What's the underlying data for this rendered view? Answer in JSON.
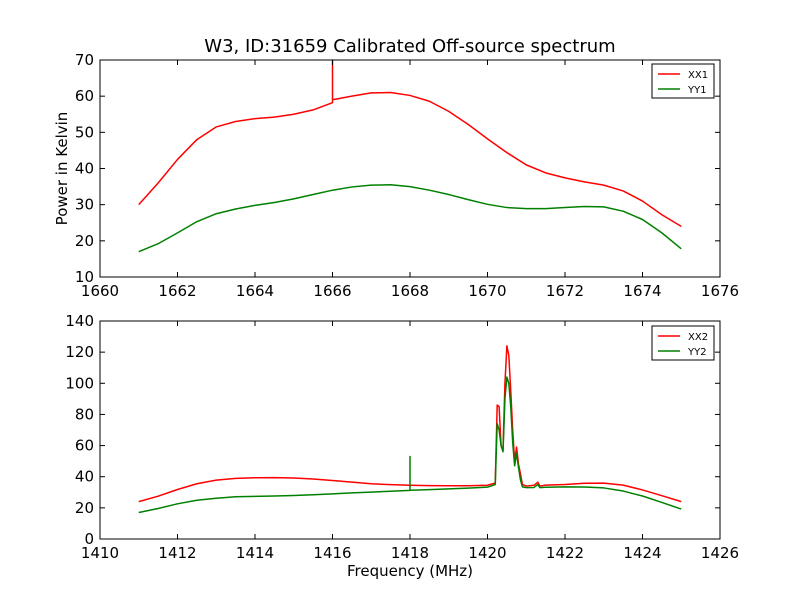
{
  "figure": {
    "title": "W3, ID:31659 Calibrated Off-source spectrum"
  },
  "chart_data": [
    {
      "type": "line",
      "title": "W3, ID:31659 Calibrated Off-source spectrum",
      "xlabel": "",
      "ylabel": "Power in Kelvin",
      "xlim": [
        1660,
        1676
      ],
      "ylim": [
        10,
        70
      ],
      "x_ticks": [
        "1660",
        "1662",
        "1664",
        "1666",
        "1668",
        "1670",
        "1672",
        "1674",
        "1676"
      ],
      "y_ticks": [
        "10",
        "20",
        "30",
        "40",
        "50",
        "60",
        "70"
      ],
      "legend": "top-right",
      "grid": false,
      "series": [
        {
          "name": "XX1",
          "color": "#ff0000",
          "points": [
            [
              1661.0,
              30.0
            ],
            [
              1661.5,
              36.0
            ],
            [
              1662.0,
              42.5
            ],
            [
              1662.5,
              48.0
            ],
            [
              1663.0,
              51.5
            ],
            [
              1663.5,
              53.0
            ],
            [
              1664.0,
              53.8
            ],
            [
              1664.5,
              54.2
            ],
            [
              1665.0,
              55.0
            ],
            [
              1665.5,
              56.2
            ],
            [
              1666.0,
              58.2
            ],
            [
              1666.0,
              70.0
            ],
            [
              1666.0,
              59.0
            ],
            [
              1666.5,
              60.0
            ],
            [
              1667.0,
              60.9
            ],
            [
              1667.5,
              61.0
            ],
            [
              1668.0,
              60.2
            ],
            [
              1668.5,
              58.6
            ],
            [
              1669.0,
              55.8
            ],
            [
              1669.5,
              52.2
            ],
            [
              1670.0,
              48.2
            ],
            [
              1670.5,
              44.4
            ],
            [
              1671.0,
              41.0
            ],
            [
              1671.5,
              38.8
            ],
            [
              1672.0,
              37.4
            ],
            [
              1672.5,
              36.3
            ],
            [
              1673.0,
              35.4
            ],
            [
              1673.5,
              33.8
            ],
            [
              1674.0,
              31.0
            ],
            [
              1674.5,
              27.2
            ],
            [
              1675.0,
              24.0
            ]
          ]
        },
        {
          "name": "YY1",
          "color": "#008000",
          "points": [
            [
              1661.0,
              17.0
            ],
            [
              1661.5,
              19.2
            ],
            [
              1662.0,
              22.2
            ],
            [
              1662.5,
              25.3
            ],
            [
              1663.0,
              27.5
            ],
            [
              1663.5,
              28.8
            ],
            [
              1664.0,
              29.8
            ],
            [
              1664.5,
              30.6
            ],
            [
              1665.0,
              31.6
            ],
            [
              1665.5,
              32.8
            ],
            [
              1666.0,
              34.0
            ],
            [
              1666.5,
              34.9
            ],
            [
              1667.0,
              35.4
            ],
            [
              1667.5,
              35.5
            ],
            [
              1668.0,
              35.0
            ],
            [
              1668.5,
              34.0
            ],
            [
              1669.0,
              32.8
            ],
            [
              1669.5,
              31.4
            ],
            [
              1670.0,
              30.1
            ],
            [
              1670.5,
              29.2
            ],
            [
              1671.0,
              28.9
            ],
            [
              1671.5,
              28.9
            ],
            [
              1672.0,
              29.2
            ],
            [
              1672.5,
              29.5
            ],
            [
              1673.0,
              29.4
            ],
            [
              1673.5,
              28.2
            ],
            [
              1674.0,
              25.9
            ],
            [
              1674.5,
              22.2
            ],
            [
              1675.0,
              17.8
            ]
          ]
        }
      ]
    },
    {
      "type": "line",
      "title": "",
      "xlabel": "Frequency (MHz)",
      "ylabel": "",
      "xlim": [
        1410,
        1426
      ],
      "ylim": [
        0,
        140
      ],
      "x_ticks": [
        "1410",
        "1412",
        "1414",
        "1416",
        "1418",
        "1420",
        "1422",
        "1424",
        "1426"
      ],
      "y_ticks": [
        "0",
        "20",
        "40",
        "60",
        "80",
        "100",
        "120",
        "140"
      ],
      "legend": "top-right",
      "grid": false,
      "series": [
        {
          "name": "XX2",
          "color": "#ff0000",
          "points": [
            [
              1411.0,
              24.0
            ],
            [
              1411.5,
              27.5
            ],
            [
              1412.0,
              31.8
            ],
            [
              1412.5,
              35.5
            ],
            [
              1413.0,
              37.8
            ],
            [
              1413.5,
              38.9
            ],
            [
              1414.0,
              39.3
            ],
            [
              1414.5,
              39.4
            ],
            [
              1415.0,
              39.2
            ],
            [
              1415.5,
              38.5
            ],
            [
              1416.0,
              37.6
            ],
            [
              1416.5,
              36.5
            ],
            [
              1417.0,
              35.5
            ],
            [
              1417.5,
              34.9
            ],
            [
              1418.0,
              34.5
            ],
            [
              1418.5,
              34.3
            ],
            [
              1419.0,
              34.2
            ],
            [
              1419.5,
              34.2
            ],
            [
              1420.0,
              34.5
            ],
            [
              1420.2,
              36.0
            ],
            [
              1420.25,
              86.0
            ],
            [
              1420.3,
              85.0
            ],
            [
              1420.35,
              60.0
            ],
            [
              1420.4,
              57.0
            ],
            [
              1420.45,
              100.0
            ],
            [
              1420.5,
              124.0
            ],
            [
              1420.55,
              118.0
            ],
            [
              1420.6,
              95.0
            ],
            [
              1420.65,
              70.0
            ],
            [
              1420.7,
              50.0
            ],
            [
              1420.75,
              59.0
            ],
            [
              1420.8,
              48.0
            ],
            [
              1420.85,
              42.0
            ],
            [
              1420.9,
              35.0
            ],
            [
              1421.0,
              34.0
            ],
            [
              1421.2,
              34.5
            ],
            [
              1421.3,
              36.5
            ],
            [
              1421.35,
              34.0
            ],
            [
              1421.5,
              34.6
            ],
            [
              1422.0,
              35.0
            ],
            [
              1422.5,
              35.8
            ],
            [
              1423.0,
              35.9
            ],
            [
              1423.5,
              34.6
            ],
            [
              1424.0,
              31.5
            ],
            [
              1424.5,
              27.8
            ],
            [
              1425.0,
              24.0
            ]
          ]
        },
        {
          "name": "YY2",
          "color": "#008000",
          "points": [
            [
              1411.0,
              17.0
            ],
            [
              1411.5,
              19.6
            ],
            [
              1412.0,
              22.6
            ],
            [
              1412.5,
              24.9
            ],
            [
              1413.0,
              26.2
            ],
            [
              1413.5,
              27.1
            ],
            [
              1414.0,
              27.4
            ],
            [
              1414.5,
              27.6
            ],
            [
              1415.0,
              27.9
            ],
            [
              1415.5,
              28.4
            ],
            [
              1416.0,
              29.0
            ],
            [
              1416.5,
              29.6
            ],
            [
              1417.0,
              30.1
            ],
            [
              1417.5,
              30.7
            ],
            [
              1418.0,
              31.2
            ],
            [
              1418.0,
              53.0
            ],
            [
              1418.0,
              31.3
            ],
            [
              1418.5,
              31.7
            ],
            [
              1419.0,
              32.2
            ],
            [
              1419.5,
              32.7
            ],
            [
              1420.0,
              33.3
            ],
            [
              1420.2,
              35.0
            ],
            [
              1420.25,
              74.0
            ],
            [
              1420.3,
              70.0
            ],
            [
              1420.35,
              60.0
            ],
            [
              1420.4,
              56.0
            ],
            [
              1420.45,
              90.0
            ],
            [
              1420.5,
              104.0
            ],
            [
              1420.55,
              100.0
            ],
            [
              1420.6,
              85.0
            ],
            [
              1420.65,
              62.0
            ],
            [
              1420.7,
              47.0
            ],
            [
              1420.75,
              55.0
            ],
            [
              1420.8,
              46.0
            ],
            [
              1420.85,
              38.0
            ],
            [
              1420.9,
              33.5
            ],
            [
              1421.0,
              33.0
            ],
            [
              1421.2,
              33.1
            ],
            [
              1421.3,
              35.0
            ],
            [
              1421.35,
              33.0
            ],
            [
              1421.5,
              33.2
            ],
            [
              1422.0,
              33.5
            ],
            [
              1422.5,
              33.4
            ],
            [
              1423.0,
              32.8
            ],
            [
              1423.5,
              30.8
            ],
            [
              1424.0,
              27.6
            ],
            [
              1424.5,
              23.5
            ],
            [
              1425.0,
              19.2
            ]
          ]
        }
      ]
    }
  ]
}
